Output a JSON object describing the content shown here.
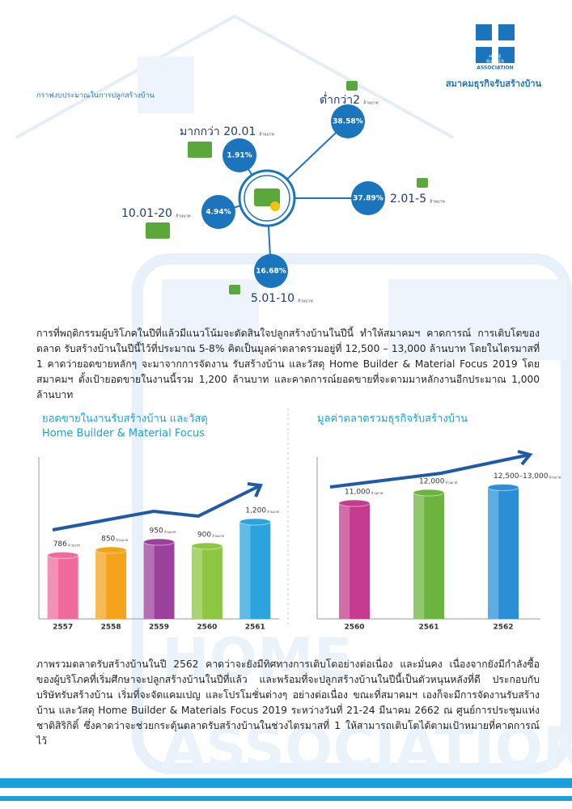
{
  "header": {
    "org_name": "สมาคมธุรกิจรับสร้างบ้าน",
    "logo_line1": "HOME",
    "logo_line2": "BUILDER",
    "logo_line3": "ASSOCIATION"
  },
  "budget_diagram": {
    "title": "กราฟงบประมาณในการปลูกสร้างบ้าน",
    "unit": "ล้านบาท",
    "items": [
      {
        "label": "ต่ำกว่า2",
        "share": "38.58%"
      },
      {
        "label": "2.01-5",
        "share": "37.89%"
      },
      {
        "label": "5.01-10",
        "share": "16.68%"
      },
      {
        "label": "10.01-20",
        "share": "4.94%"
      },
      {
        "label": "มากกว่า 20.01",
        "share": "1.91%"
      }
    ]
  },
  "paragraphs": [
    "การที่พฤติกรรมผู้บริโภคในปีที่แล้วมีแนวโน้มจะตัดสินใจปลูกสร้างบ้านในปีนี้ ทำให้สมาคมฯ คาดการณ์ การเติบโตของตลาด รับสร้างบ้านในปีนี้ไว้ที่ประมาณ 5-8% คิดเป็นมูลค่าตลาดรวมอยู่ที่ 12,500 – 13,000 ล้านบาท โดยในไตรมาสที่ 1 คาดว่ายอดขายหลักๆ จะมาจากการจัดงาน รับสร้างบ้าน และวัสดุ Home Builder & Material Focus 2019 โดยสมาคมฯ ตั้งเป้ายอดขายในงานนี้รวม 1,200 ล้านบาท และคาดการณ์ยอดขายที่จะตามมาหลักงานอีกประมาณ 1,000 ล้านบาท",
    "ภาพรวมตลาดรับสร้างบ้านในปี 2562 คาดว่าจะยังมีทิศทางการเติบโตอย่างต่อเนื่อง และมั่นคง เนื่องจากยังมีกำลังซื้อของผู้บริโภคที่เริ่มศึกษาจะปลูกสร้างบ้านในปีที่แล้ว และพร้อมที่จะปลูกสร้างบ้านในปีนี้เป็นตัวหนุนหลังที่ดี ประกอบกับบริษัทรับสร้างบ้าน เริ่มที่จะจัดแคมเปญ และโปรโมชั่นต่างๆ อย่างต่อเนื่อง ขณะที่สมาคมฯ เองก็จะมีการจัดงานรับสร้างบ้าน และวัสดุ Home Builder & Materials Focus 2019 ระหว่างวันที่ 21-24 มีนาคม 2662 ณ ศูนย์การประชุมแห่งชาติสิริกิติ์ ซึ่งคาดว่าจะช่วยกระตุ้นตลาดรับสร้างบ้านในช่วงไตรมาสที่ 1 ให้สามารถเติบโตได้ตามเป้าหมายที่คาดการณ์ไว้"
  ],
  "chart_data": [
    {
      "type": "bar",
      "title": "ยอดขายในงานรับสร้างบ้าน และวัสดุ",
      "subtitle": "Home Builder & Material Focus",
      "unit": "ล้านบาท",
      "categories": [
        "2557",
        "2558",
        "2559",
        "2560",
        "2561"
      ],
      "values": [
        786,
        850,
        950,
        900,
        1200
      ],
      "value_labels": [
        "786",
        "850",
        "950",
        "900",
        "1,200"
      ],
      "colors": [
        "#f06b9c",
        "#f6a31c",
        "#9c3f9d",
        "#8dc641",
        "#2aa3de"
      ]
    },
    {
      "type": "bar",
      "title": "มูลค่าตลาดรวมธุรกิจรับสร้างบ้าน",
      "unit": "ล้านบาท",
      "categories": [
        "2560",
        "2561",
        "2562"
      ],
      "values": [
        11000,
        12000,
        12500
      ],
      "value_labels": [
        "11,000",
        "12,000",
        "12,500–13,000"
      ],
      "colors": [
        "#c43b8f",
        "#6cb43f",
        "#2b8fd7"
      ]
    }
  ]
}
